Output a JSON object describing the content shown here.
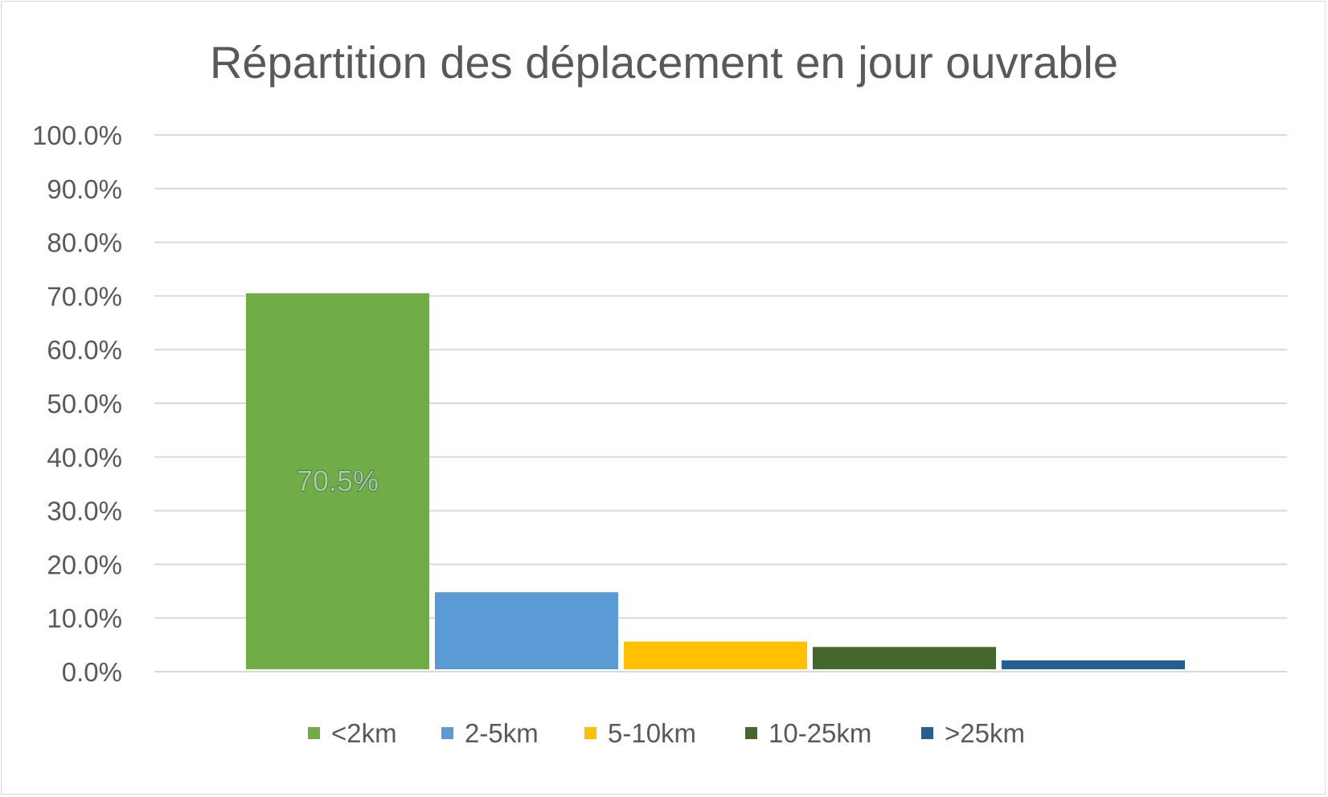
{
  "chart_data": {
    "type": "bar",
    "title": "Répartition des déplacement en jour ouvrable",
    "xlabel": "",
    "ylabel": "",
    "ylim": [
      0,
      100
    ],
    "yticks": [
      "0.0%",
      "10.0%",
      "20.0%",
      "30.0%",
      "40.0%",
      "50.0%",
      "60.0%",
      "70.0%",
      "80.0%",
      "90.0%",
      "100.0%"
    ],
    "grid": true,
    "legend_position": "bottom",
    "series": [
      {
        "name": "<2km",
        "values": [
          70.5
        ],
        "color": "#70ad47",
        "data_label": "70.5%"
      },
      {
        "name": "2-5km",
        "values": [
          14.8
        ],
        "color": "#5b9bd5"
      },
      {
        "name": "5-10km",
        "values": [
          5.6
        ],
        "color": "#ffc000"
      },
      {
        "name": "10-25km",
        "values": [
          4.6
        ],
        "color": "#43682b"
      },
      {
        "name": ">25km",
        "values": [
          2.1
        ],
        "color": "#255e91"
      }
    ]
  }
}
